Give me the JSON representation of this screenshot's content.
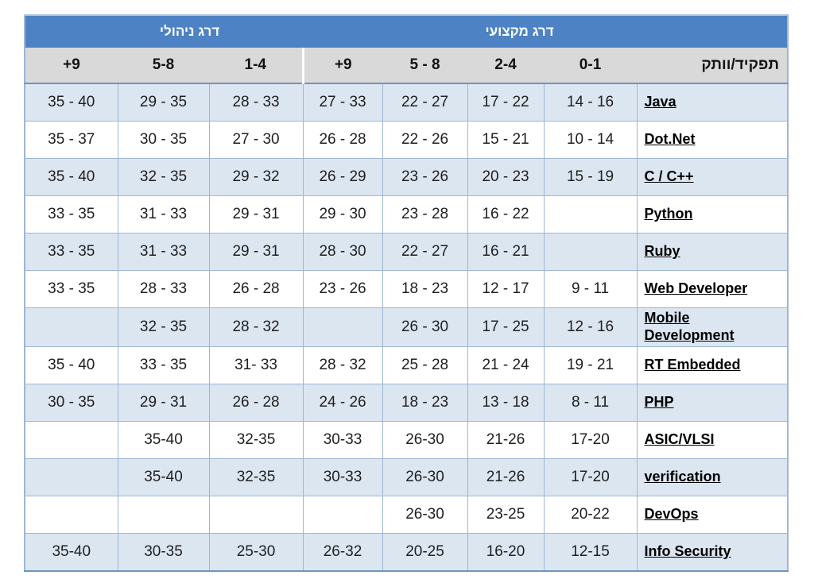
{
  "style": {
    "header_blue": "#4d82c4",
    "header_gray": "#d9d9d9",
    "row_alt_blue": "#dce6f1",
    "row_white": "#ffffff",
    "grid_border": "#9fb6d3",
    "header_rule": "#6f94bd",
    "role_text_color": "#000000"
  },
  "chart_data": {
    "type": "table",
    "title": "",
    "direction": "rtl",
    "section_headers": [
      {
        "label": "דרג ניהולי",
        "colspan": 3
      },
      {
        "label": "דרג מקצועי",
        "colspan": 5
      }
    ],
    "column_headers": [
      "+9",
      "5-8",
      "1-4",
      "+9",
      "5 - 8",
      "2-4",
      "0-1",
      "תפקיד/וותק"
    ],
    "rows": [
      {
        "role": "Java",
        "values": [
          "35 - 40",
          "29 - 35",
          "28 - 33",
          "27 - 33",
          "22 - 27",
          "17 - 22",
          "14 - 16"
        ]
      },
      {
        "role": "Dot.Net",
        "values": [
          "35 - 37",
          "30 - 35",
          "27 - 30",
          "26 - 28",
          "22 - 26",
          "15 - 21",
          "10 - 14"
        ]
      },
      {
        "role": "C / C++",
        "values": [
          "35 - 40",
          "32 - 35",
          "29 - 32",
          "26 - 29",
          "23 - 26",
          "20 - 23",
          "15 - 19"
        ]
      },
      {
        "role": "Python",
        "values": [
          "33 - 35",
          "31 - 33",
          "29 - 31",
          "29 - 30",
          "23 - 28",
          "16 - 22",
          ""
        ]
      },
      {
        "role": "Ruby",
        "values": [
          "33 - 35",
          "31 - 33",
          "29 - 31",
          "28 - 30",
          "22 - 27",
          "16 - 21",
          ""
        ]
      },
      {
        "role": "Web Developer",
        "values": [
          "33 - 35",
          "28 - 33",
          "26 - 28",
          "23 - 26",
          "18 - 23",
          "12 - 17",
          "9 - 11"
        ]
      },
      {
        "role": "Mobile\nDevelopment",
        "values": [
          "",
          "32 - 35",
          "28 - 32",
          "",
          "26 - 30",
          "17 - 25",
          "12 - 16"
        ]
      },
      {
        "role": "RT Embedded",
        "values": [
          "35 - 40",
          "33 - 35",
          "31- 33",
          "28 - 32",
          "25 - 28",
          "21 - 24",
          "19 - 21"
        ]
      },
      {
        "role": "PHP",
        "values": [
          "30 - 35",
          "29 - 31",
          "26 - 28",
          "24 - 26",
          "18 - 23",
          "13 - 18",
          "8 - 11"
        ]
      },
      {
        "role": "ASIC/VLSI",
        "values": [
          "",
          "35-40",
          "32-35",
          "30-33",
          "26-30",
          "21-26",
          "17-20"
        ]
      },
      {
        "role": "verification",
        "values": [
          "",
          "35-40",
          "32-35",
          "30-33",
          "26-30",
          "21-26",
          "17-20"
        ]
      },
      {
        "role": "DevOps",
        "values": [
          "",
          "",
          "",
          "",
          "26-30",
          "23-25",
          "20-22"
        ]
      },
      {
        "role": "Info Security",
        "values": [
          "35-40",
          "30-35",
          "25-30",
          "26-32",
          "20-25",
          "16-20",
          "12-15"
        ]
      }
    ]
  }
}
